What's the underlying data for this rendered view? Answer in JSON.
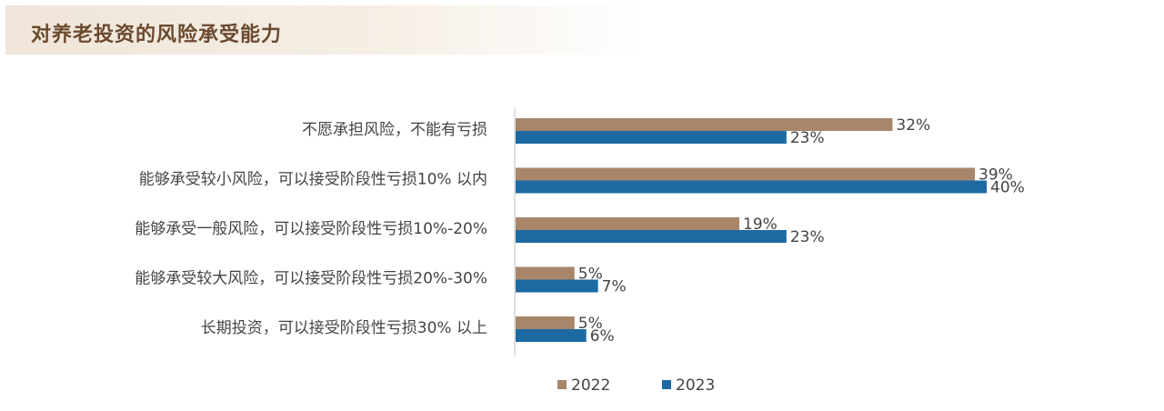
{
  "header": {
    "title": "对养老投资的风险承受能力"
  },
  "chart_data": {
    "type": "bar",
    "orientation": "horizontal",
    "categories": [
      "不愿承担风险，不能有亏损",
      "能够承受较小风险，可以接受阶段性亏损10% 以内",
      "能够承受一般风险，可以接受阶段性亏损10%-20%",
      "能够承受较大风险，可以接受阶段性亏损20%-30%",
      "长期投资，可以接受阶段性亏损30% 以上"
    ],
    "series": [
      {
        "name": "2022",
        "color": "#a8866a",
        "values": [
          32,
          39,
          19,
          5,
          5
        ],
        "labels": [
          "32%",
          "39%",
          "19%",
          "5%",
          "5%"
        ]
      },
      {
        "name": "2023",
        "color": "#1d6aa3",
        "values": [
          23,
          40,
          23,
          7,
          6
        ],
        "labels": [
          "23%",
          "40%",
          "23%",
          "7%",
          "6%"
        ]
      }
    ],
    "xlim": [
      0,
      45
    ],
    "grid": false,
    "legend_position": "bottom"
  }
}
